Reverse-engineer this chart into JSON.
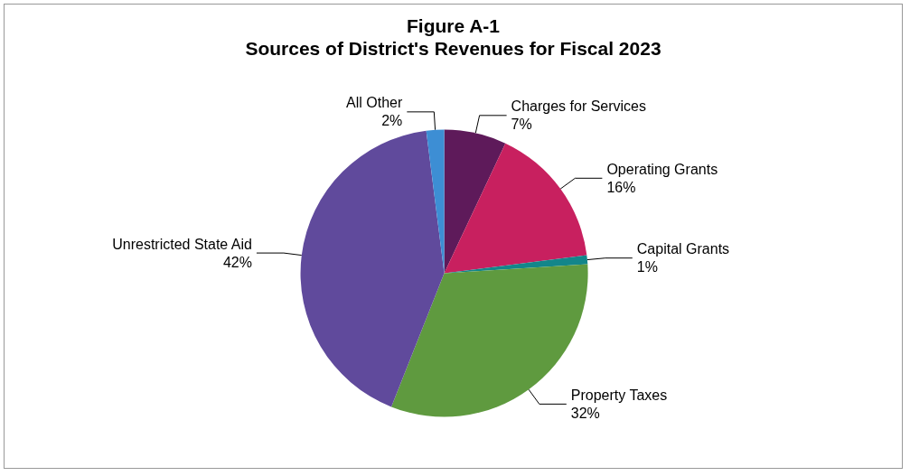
{
  "chart_data": {
    "type": "pie",
    "title": "Figure A-1",
    "subtitle": "Sources of District's Revenues for Fiscal 2023",
    "categories": [
      "Charges for Services",
      "Operating Grants",
      "Capital Grants",
      "Property Taxes",
      "Unrestricted State Aid",
      "All Other"
    ],
    "values": [
      7,
      16,
      1,
      32,
      42,
      2
    ],
    "value_labels": [
      "7%",
      "16%",
      "1%",
      "32%",
      "42%",
      "2%"
    ],
    "colors": [
      "#5e1a5a",
      "#c8205f",
      "#13868a",
      "#5f9a3f",
      "#604a9c",
      "#3d8ed4"
    ],
    "legend": false
  }
}
